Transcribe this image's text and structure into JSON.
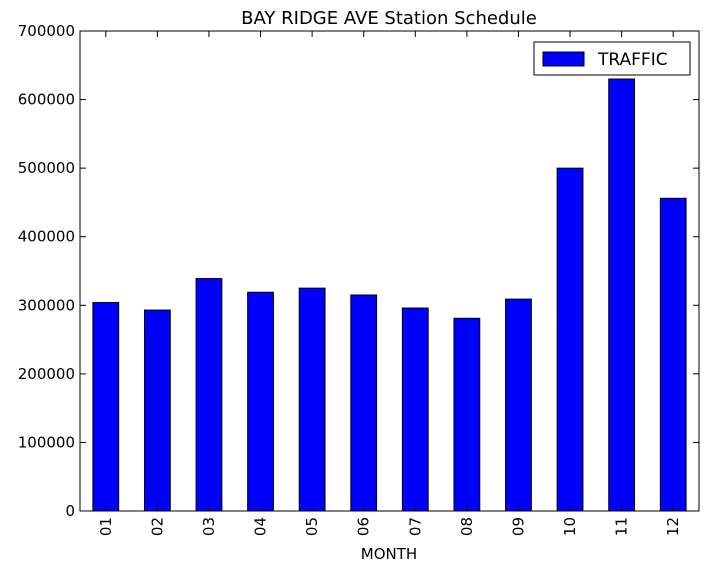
{
  "chart_data": {
    "type": "bar",
    "title": "BAY RIDGE AVE Station Schedule",
    "xlabel": "MONTH",
    "ylabel": "",
    "categories": [
      "01",
      "02",
      "03",
      "04",
      "05",
      "06",
      "07",
      "08",
      "09",
      "10",
      "11",
      "12"
    ],
    "series": [
      {
        "name": "TRAFFIC",
        "values": [
          304000,
          293000,
          339000,
          319000,
          325000,
          315000,
          296000,
          281000,
          309000,
          500000,
          630000,
          456000
        ],
        "color": "#0000ff"
      }
    ],
    "ylim": [
      0,
      700000
    ],
    "yticks": [
      0,
      100000,
      200000,
      300000,
      400000,
      500000,
      600000,
      700000
    ],
    "ytick_labels": [
      "0",
      "100000",
      "200000",
      "300000",
      "400000",
      "500000",
      "600000",
      "700000"
    ],
    "grid": false,
    "legend": {
      "placement": "top-right"
    }
  }
}
